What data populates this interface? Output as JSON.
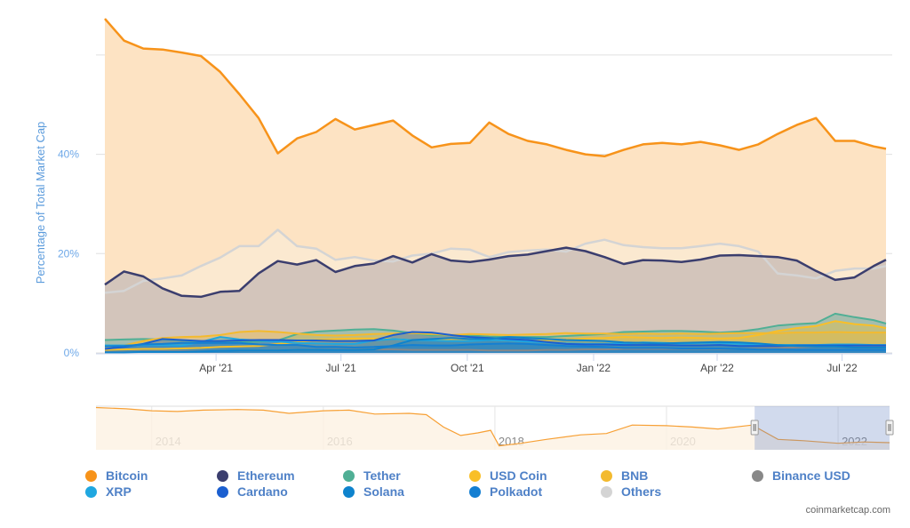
{
  "chart_data": {
    "type": "area",
    "ylabel": "Percentage of Total Market Cap",
    "ylim": [
      0,
      67.5
    ],
    "yticks": [
      {
        "v": 0,
        "label": "0%"
      },
      {
        "v": 20,
        "label": "20%"
      },
      {
        "v": 40,
        "label": "40%"
      },
      {
        "v": 60,
        "label": ""
      }
    ],
    "xticks": [
      {
        "date": "2021-04-01",
        "label": "Apr '21"
      },
      {
        "date": "2021-07-01",
        "label": "Jul '21"
      },
      {
        "date": "2021-10-01",
        "label": "Oct '21"
      },
      {
        "date": "2022-01-01",
        "label": "Jan '22"
      },
      {
        "date": "2022-04-01",
        "label": "Apr '22"
      },
      {
        "date": "2022-07-01",
        "label": "Jul '22"
      }
    ],
    "xrange": [
      "2021-01-10",
      "2022-08-02"
    ],
    "grid": true,
    "x": [
      "2021-01-10",
      "2021-01-24",
      "2021-02-07",
      "2021-02-21",
      "2021-03-07",
      "2021-03-21",
      "2021-04-04",
      "2021-04-18",
      "2021-05-02",
      "2021-05-16",
      "2021-05-30",
      "2021-06-13",
      "2021-06-27",
      "2021-07-11",
      "2021-07-25",
      "2021-08-08",
      "2021-08-22",
      "2021-09-05",
      "2021-09-19",
      "2021-10-03",
      "2021-10-17",
      "2021-10-31",
      "2021-11-14",
      "2021-11-28",
      "2021-12-12",
      "2021-12-26",
      "2022-01-09",
      "2022-01-23",
      "2022-02-06",
      "2022-02-20",
      "2022-03-06",
      "2022-03-20",
      "2022-04-03",
      "2022-04-17",
      "2022-05-01",
      "2022-05-15",
      "2022-05-29",
      "2022-06-12",
      "2022-06-26",
      "2022-07-10",
      "2022-07-24",
      "2022-08-02"
    ],
    "series": [
      {
        "name": "Bitcoin",
        "color": "#f7931a",
        "fill": "#fde3c3",
        "values": [
          67.3,
          62.9,
          61.3,
          61.1,
          60.5,
          59.8,
          56.6,
          52.1,
          47.3,
          40.2,
          43.2,
          44.5,
          47.1,
          45.0,
          45.9,
          46.8,
          43.8,
          41.4,
          42.1,
          42.3,
          46.4,
          44.1,
          42.7,
          42.0,
          40.9,
          40.0,
          39.6,
          40.9,
          42.0,
          42.3,
          42.0,
          42.5,
          41.8,
          40.9,
          42.0,
          44.1,
          45.9,
          47.3,
          42.7,
          42.7,
          41.6,
          41.1
        ]
      },
      {
        "name": "Others",
        "color": "#d4d4d4",
        "fill": "#fbe9d0",
        "values": [
          12.1,
          12.5,
          14.5,
          15.0,
          15.6,
          17.5,
          19.2,
          21.5,
          21.5,
          24.8,
          21.5,
          21.0,
          18.75,
          19.3,
          18.6,
          18.4,
          19.6,
          20.0,
          21.0,
          20.8,
          19.3,
          20.3,
          20.6,
          20.8,
          20.4,
          22.0,
          22.8,
          21.7,
          21.3,
          21.1,
          21.1,
          21.5,
          22.0,
          21.5,
          20.4,
          16.0,
          15.6,
          15.0,
          16.5,
          17.0,
          17.0,
          17.5
        ]
      },
      {
        "name": "Ethereum",
        "color": "#3b3e6e",
        "fill": "#d3c5bb",
        "values": [
          13.75,
          16.4,
          15.4,
          13.0,
          11.5,
          11.3,
          12.3,
          12.5,
          16.0,
          18.5,
          17.8,
          18.7,
          16.3,
          17.5,
          18.0,
          19.5,
          18.2,
          19.9,
          18.6,
          18.3,
          18.8,
          19.5,
          19.8,
          20.5,
          21.2,
          20.5,
          19.3,
          17.9,
          18.7,
          18.6,
          18.3,
          18.8,
          19.6,
          19.7,
          19.5,
          19.3,
          18.6,
          16.5,
          14.7,
          15.2,
          17.5,
          18.75
        ]
      },
      {
        "name": "Tether",
        "color": "#50af95",
        "fill": "#50af95",
        "values": [
          2.6,
          2.7,
          2.8,
          2.7,
          2.5,
          2.3,
          2.2,
          2.2,
          2.3,
          2.5,
          3.8,
          4.3,
          4.5,
          4.7,
          4.8,
          4.5,
          4.0,
          3.5,
          3.6,
          3.5,
          3.3,
          3.2,
          3.2,
          3.2,
          3.4,
          3.6,
          3.8,
          4.2,
          4.3,
          4.4,
          4.4,
          4.3,
          4.1,
          4.3,
          4.8,
          5.5,
          5.8,
          6.0,
          7.9,
          7.2,
          6.6,
          5.9
        ]
      },
      {
        "name": "USD Coin",
        "color": "#f9bf27",
        "fill": "#f9bf27",
        "values": [
          0.6,
          0.7,
          0.8,
          0.8,
          0.9,
          1.0,
          1.2,
          1.3,
          1.4,
          1.8,
          2.2,
          2.6,
          2.8,
          2.9,
          2.9,
          2.8,
          2.6,
          2.6,
          2.8,
          2.8,
          2.7,
          2.5,
          2.4,
          2.5,
          2.7,
          2.9,
          3.0,
          3.2,
          3.1,
          3.0,
          3.1,
          3.0,
          2.9,
          3.0,
          3.6,
          4.4,
          5.0,
          5.4,
          6.4,
          5.8,
          5.5,
          5.0
        ]
      },
      {
        "name": "BNB",
        "color": "#f3ba2f",
        "fill": "#f3ba2f",
        "values": [
          1.2,
          1.5,
          2.4,
          3.0,
          3.2,
          3.3,
          3.6,
          4.2,
          4.4,
          4.2,
          3.9,
          3.6,
          3.5,
          3.6,
          3.8,
          3.9,
          4.0,
          3.8,
          3.6,
          3.8,
          3.7,
          3.6,
          3.7,
          3.8,
          4.0,
          3.9,
          3.9,
          3.8,
          3.9,
          3.8,
          3.9,
          3.8,
          3.9,
          4.0,
          4.0,
          4.0,
          4.1,
          4.1,
          4.2,
          4.1,
          4.1,
          4.1
        ]
      },
      {
        "name": "Binance USD",
        "color": "#888888",
        "fill": "#888888",
        "values": [
          0.2,
          0.2,
          0.3,
          0.3,
          0.4,
          0.4,
          0.4,
          0.5,
          0.5,
          0.5,
          0.6,
          0.6,
          0.7,
          0.7,
          0.7,
          0.7,
          0.6,
          0.6,
          0.6,
          0.6,
          0.5,
          0.5,
          0.5,
          0.6,
          0.6,
          0.7,
          0.7,
          0.8,
          0.8,
          0.8,
          0.8,
          0.8,
          0.8,
          0.8,
          0.9,
          1.0,
          1.1,
          1.3,
          1.4,
          1.3,
          1.3,
          1.3
        ]
      },
      {
        "name": "XRP",
        "color": "#1fa7e0",
        "fill": "#1fa7e0",
        "values": [
          1.5,
          1.5,
          1.6,
          1.6,
          1.5,
          2.2,
          3.2,
          2.7,
          2.5,
          2.3,
          2.0,
          1.9,
          1.8,
          1.8,
          2.5,
          2.8,
          2.6,
          2.5,
          2.4,
          2.4,
          2.6,
          2.5,
          2.3,
          2.1,
          1.9,
          1.8,
          1.8,
          1.9,
          2.1,
          2.0,
          1.9,
          2.0,
          2.0,
          1.8,
          1.6,
          1.6,
          1.6,
          1.6,
          1.7,
          1.7,
          1.6,
          1.6
        ]
      },
      {
        "name": "Cardano",
        "color": "#1b5fd0",
        "fill": "#1b5fd0",
        "values": [
          0.8,
          1.2,
          1.8,
          2.8,
          2.6,
          2.4,
          2.4,
          2.5,
          2.6,
          2.6,
          2.5,
          2.5,
          2.4,
          2.4,
          2.5,
          3.6,
          4.2,
          4.1,
          3.6,
          3.2,
          3.0,
          2.8,
          2.6,
          2.2,
          1.8,
          1.7,
          1.7,
          1.6,
          1.6,
          1.6,
          1.5,
          1.5,
          1.6,
          1.4,
          1.4,
          1.4,
          1.5,
          1.5,
          1.5,
          1.5,
          1.5,
          1.5
        ]
      },
      {
        "name": "Solana",
        "color": "#0e83cd",
        "fill": "#0e83cd",
        "values": [
          0.1,
          0.1,
          0.2,
          0.2,
          0.2,
          0.3,
          0.4,
          0.5,
          0.5,
          0.5,
          0.6,
          0.6,
          0.6,
          0.6,
          0.7,
          1.5,
          2.6,
          2.8,
          3.0,
          2.8,
          2.8,
          3.2,
          3.0,
          2.8,
          2.6,
          2.5,
          2.4,
          2.1,
          2.0,
          1.9,
          2.0,
          2.1,
          2.2,
          2.1,
          1.9,
          1.6,
          1.4,
          1.3,
          1.3,
          1.1,
          1.1,
          1.1
        ]
      },
      {
        "name": "Polkadot",
        "color": "#147fd2",
        "fill": "#147fd2",
        "values": [
          1.3,
          1.4,
          1.7,
          1.8,
          2.0,
          2.0,
          2.0,
          2.0,
          1.7,
          1.6,
          1.6,
          1.2,
          1.2,
          1.1,
          1.2,
          1.4,
          1.6,
          1.5,
          1.5,
          1.7,
          1.8,
          1.9,
          1.8,
          1.6,
          1.4,
          1.3,
          1.2,
          1.0,
          1.0,
          1.0,
          0.9,
          0.9,
          0.9,
          0.8,
          0.7,
          0.7,
          0.6,
          0.6,
          0.6,
          0.6,
          0.6,
          0.6
        ]
      }
    ],
    "legend_placement": "bottom",
    "navigator": {
      "series": "Bitcoin",
      "xrange": [
        2013.35,
        2022.6
      ],
      "ylim": [
        30,
        97
      ],
      "selected_range": [
        "2021-01-10",
        "2022-08-02"
      ],
      "x": [
        2013.35,
        2013.7,
        2014.0,
        2014.3,
        2014.6,
        2015.0,
        2015.3,
        2015.6,
        2016.0,
        2016.3,
        2016.6,
        2017.0,
        2017.2,
        2017.4,
        2017.6,
        2017.8,
        2017.95,
        2018.05,
        2018.3,
        2018.6,
        2019.0,
        2019.3,
        2019.6,
        2020.0,
        2020.3,
        2020.6,
        2021.0,
        2021.3,
        2021.6,
        2022.0,
        2022.3,
        2022.6
      ],
      "values": [
        95,
        93,
        90,
        89,
        91,
        92,
        91,
        86,
        90,
        91,
        85,
        86,
        84,
        65,
        52,
        56,
        60,
        36,
        40,
        46,
        53,
        55,
        68,
        67,
        65,
        62,
        68,
        46,
        44,
        40,
        42,
        41
      ],
      "ticks": [
        {
          "v": 2014,
          "label": "2014"
        },
        {
          "v": 2016,
          "label": "2016"
        },
        {
          "v": 2018,
          "label": "2018"
        },
        {
          "v": 2020,
          "label": "2020"
        },
        {
          "v": 2022,
          "label": "2022"
        }
      ]
    }
  },
  "legend": [
    {
      "name": "Bitcoin",
      "color": "#f7931a"
    },
    {
      "name": "Ethereum",
      "color": "#3b3e6e"
    },
    {
      "name": "Tether",
      "color": "#50af95"
    },
    {
      "name": "USD Coin",
      "color": "#f9bf27"
    },
    {
      "name": "BNB",
      "color": "#f3ba2f"
    },
    {
      "name": "Binance USD",
      "color": "#888888"
    },
    {
      "name": "XRP",
      "color": "#1fa7e0"
    },
    {
      "name": "Cardano",
      "color": "#1b5fd0"
    },
    {
      "name": "Solana",
      "color": "#0e83cd"
    },
    {
      "name": "Polkadot",
      "color": "#147fd2"
    },
    {
      "name": "Others",
      "color": "#d4d4d4"
    }
  ],
  "credit": "coinmarketcap.com"
}
